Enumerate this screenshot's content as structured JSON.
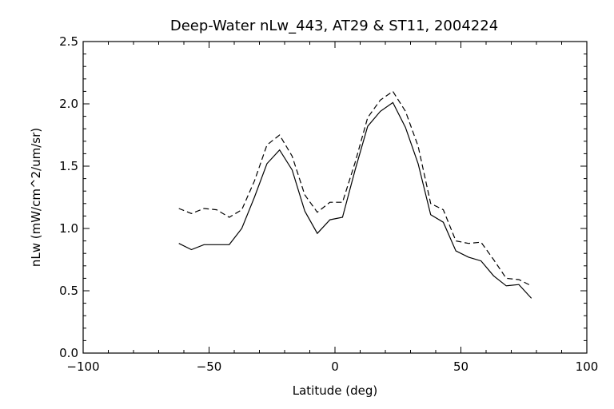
{
  "chart_data": {
    "type": "line",
    "title": "Deep-Water nLw_443, AT29 & ST11, 2004224",
    "xlabel": "Latitude (deg)",
    "ylabel": "nLw (mW/cm^2/um/sr)",
    "xlim": [
      -100,
      100
    ],
    "ylim": [
      0.0,
      2.5
    ],
    "xticks": [
      -100,
      -50,
      0,
      50,
      100
    ],
    "xtick_labels": [
      "−100",
      "−50",
      "0",
      "50",
      "100"
    ],
    "yticks": [
      0.0,
      0.5,
      1.0,
      1.5,
      2.0,
      2.5
    ],
    "ytick_labels": [
      "0.0",
      "0.5",
      "1.0",
      "1.5",
      "2.0",
      "2.5"
    ],
    "grid": false,
    "legend": "none",
    "series": [
      {
        "style": "solid",
        "color": "#000000",
        "x": [
          -62,
          -57,
          -52,
          -47,
          -42,
          -37,
          -32,
          -27,
          -22,
          -17,
          -12,
          -7,
          -2,
          3,
          8,
          13,
          18,
          23,
          28,
          33,
          38,
          43,
          48,
          53,
          58,
          63,
          68,
          73,
          78
        ],
        "y": [
          0.88,
          0.83,
          0.87,
          0.87,
          0.87,
          1.0,
          1.25,
          1.52,
          1.63,
          1.47,
          1.14,
          0.96,
          1.07,
          1.09,
          1.47,
          1.82,
          1.94,
          2.01,
          1.81,
          1.52,
          1.11,
          1.05,
          0.82,
          0.77,
          0.74,
          0.62,
          0.54,
          0.55,
          0.44
        ]
      },
      {
        "style": "dashed",
        "color": "#000000",
        "x": [
          -62,
          -57,
          -52,
          -47,
          -42,
          -37,
          -32,
          -27,
          -22,
          -17,
          -12,
          -7,
          -2,
          3,
          8,
          13,
          18,
          23,
          28,
          33,
          38,
          43,
          48,
          53,
          58,
          63,
          68,
          73,
          78
        ],
        "y": [
          1.16,
          1.12,
          1.16,
          1.15,
          1.09,
          1.15,
          1.38,
          1.67,
          1.75,
          1.58,
          1.27,
          1.13,
          1.21,
          1.21,
          1.53,
          1.89,
          2.03,
          2.1,
          1.94,
          1.66,
          1.2,
          1.15,
          0.9,
          0.88,
          0.89,
          0.75,
          0.6,
          0.59,
          0.54
        ]
      }
    ]
  }
}
